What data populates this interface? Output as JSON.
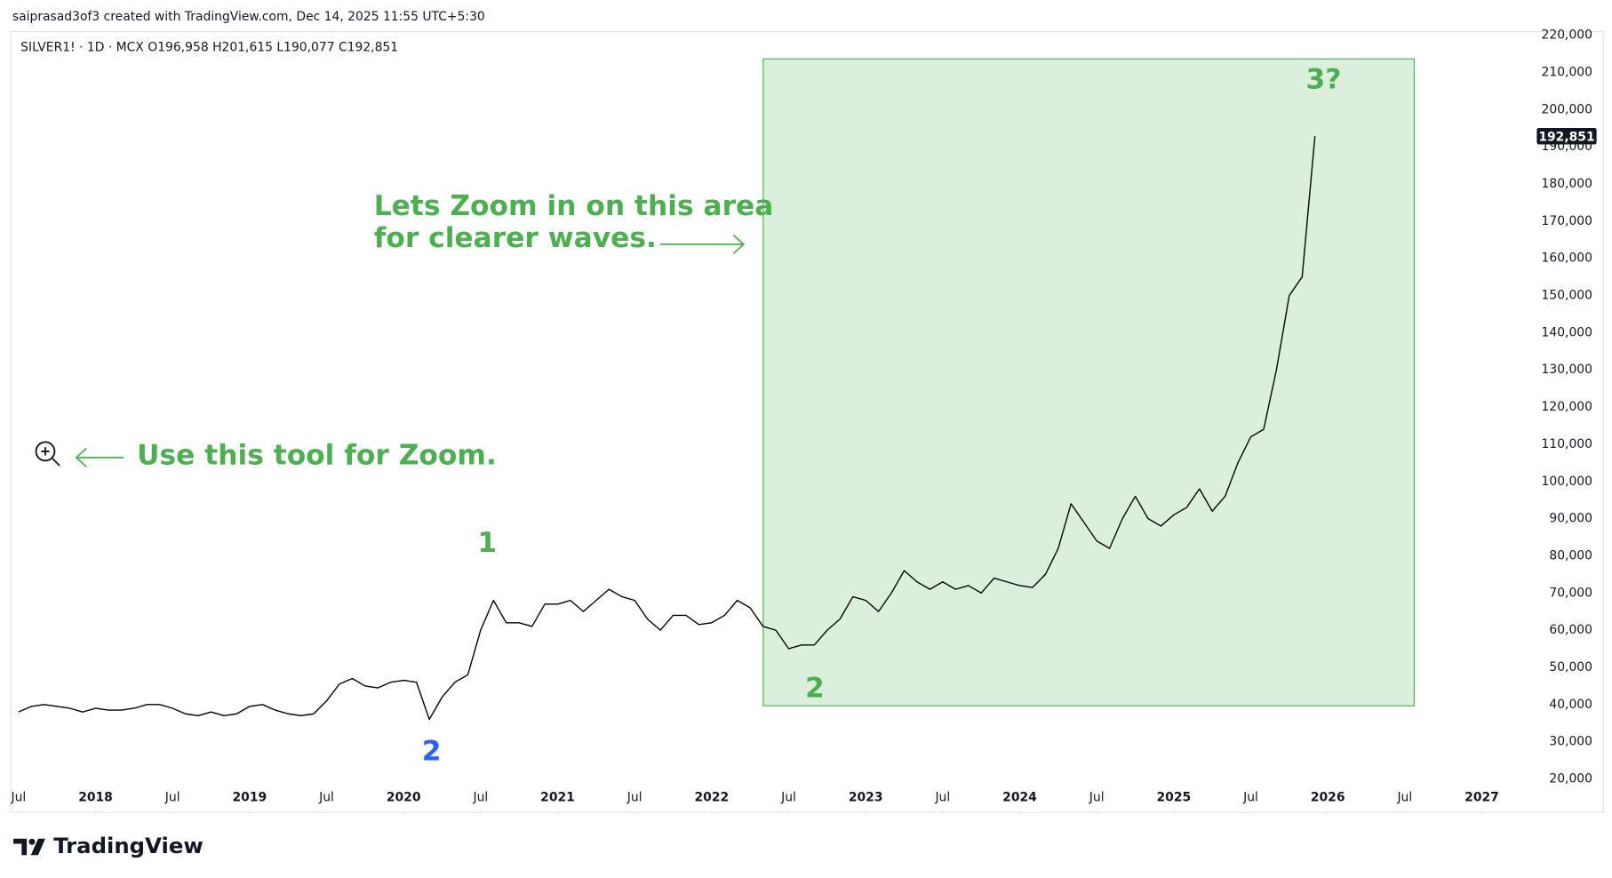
{
  "header": {
    "credit": "saiprasad3of3 created with TradingView.com, Dec 14, 2025 11:55 UTC+5:30",
    "brand": "TradingView"
  },
  "chart_data": {
    "type": "line",
    "title": "SILVER1! · 1D · MCX  O196,958  H201,615  L190,077  C192,851",
    "x": [
      "2017-07",
      "2017-08",
      "2017-09",
      "2017-10",
      "2017-11",
      "2017-12",
      "2018-01",
      "2018-02",
      "2018-03",
      "2018-04",
      "2018-05",
      "2018-06",
      "2018-07",
      "2018-08",
      "2018-09",
      "2018-10",
      "2018-11",
      "2018-12",
      "2019-01",
      "2019-02",
      "2019-03",
      "2019-04",
      "2019-05",
      "2019-06",
      "2019-07",
      "2019-08",
      "2019-09",
      "2019-10",
      "2019-11",
      "2019-12",
      "2020-01",
      "2020-02",
      "2020-03",
      "2020-04",
      "2020-05",
      "2020-06",
      "2020-07",
      "2020-08",
      "2020-09",
      "2020-10",
      "2020-11",
      "2020-12",
      "2021-01",
      "2021-02",
      "2021-03",
      "2021-04",
      "2021-05",
      "2021-06",
      "2021-07",
      "2021-08",
      "2021-09",
      "2021-10",
      "2021-11",
      "2021-12",
      "2022-01",
      "2022-02",
      "2022-03",
      "2022-04",
      "2022-05",
      "2022-06",
      "2022-07",
      "2022-08",
      "2022-09",
      "2022-10",
      "2022-11",
      "2022-12",
      "2023-01",
      "2023-02",
      "2023-03",
      "2023-04",
      "2023-05",
      "2023-06",
      "2023-07",
      "2023-08",
      "2023-09",
      "2023-10",
      "2023-11",
      "2023-12",
      "2024-01",
      "2024-02",
      "2024-03",
      "2024-04",
      "2024-05",
      "2024-06",
      "2024-07",
      "2024-08",
      "2024-09",
      "2024-10",
      "2024-11",
      "2024-12",
      "2025-01",
      "2025-02",
      "2025-03",
      "2025-04",
      "2025-05",
      "2025-06",
      "2025-07",
      "2025-08",
      "2025-09",
      "2025-10",
      "2025-11",
      "2025-12"
    ],
    "series": [
      {
        "name": "SILVER1!",
        "color": "#000000",
        "values": [
          38000,
          39500,
          40000,
          39500,
          39000,
          38000,
          39000,
          38500,
          38500,
          39000,
          40000,
          40000,
          39000,
          37500,
          37000,
          38000,
          37000,
          37500,
          39500,
          40000,
          38500,
          37500,
          37000,
          37500,
          41000,
          45500,
          47000,
          45000,
          44500,
          46000,
          46500,
          46000,
          36000,
          42000,
          46000,
          48000,
          60000,
          68000,
          62000,
          62000,
          61000,
          67000,
          67000,
          68000,
          65000,
          68000,
          71000,
          69000,
          68000,
          63000,
          60000,
          64000,
          64000,
          61500,
          62000,
          64000,
          68000,
          66000,
          61000,
          60000,
          55000,
          56000,
          56000,
          60000,
          63000,
          69000,
          68000,
          65000,
          70000,
          76000,
          73000,
          71000,
          73000,
          71000,
          72000,
          70000,
          74000,
          73000,
          72000,
          71500,
          75000,
          82000,
          94000,
          89000,
          84000,
          82000,
          90000,
          96000,
          90000,
          88000,
          91000,
          93000,
          98000,
          92000,
          96000,
          105000,
          112000,
          114000,
          130000,
          150000,
          155000,
          192851
        ]
      }
    ],
    "xlim": [
      "2017-07",
      "2027-04"
    ],
    "xticks": [
      {
        "value": "2017-07",
        "label": "Jul"
      },
      {
        "value": "2018-01",
        "label": "2018"
      },
      {
        "value": "2018-07",
        "label": "Jul"
      },
      {
        "value": "2019-01",
        "label": "2019"
      },
      {
        "value": "2019-07",
        "label": "Jul"
      },
      {
        "value": "2020-01",
        "label": "2020"
      },
      {
        "value": "2020-07",
        "label": "Jul"
      },
      {
        "value": "2021-01",
        "label": "2021"
      },
      {
        "value": "2021-07",
        "label": "Jul"
      },
      {
        "value": "2022-01",
        "label": "2022"
      },
      {
        "value": "2022-07",
        "label": "Jul"
      },
      {
        "value": "2023-01",
        "label": "2023"
      },
      {
        "value": "2023-07",
        "label": "Jul"
      },
      {
        "value": "2024-01",
        "label": "2024"
      },
      {
        "value": "2024-07",
        "label": "Jul"
      },
      {
        "value": "2025-01",
        "label": "2025"
      },
      {
        "value": "2025-07",
        "label": "Jul"
      },
      {
        "value": "2026-01",
        "label": "2026"
      },
      {
        "value": "2026-07",
        "label": "Jul"
      },
      {
        "value": "2027-01",
        "label": "2027"
      }
    ],
    "ylim": [
      20000,
      220000
    ],
    "yticks": [
      {
        "value": 20000,
        "label": "20,000"
      },
      {
        "value": 30000,
        "label": "30,000"
      },
      {
        "value": 40000,
        "label": "40,000"
      },
      {
        "value": 50000,
        "label": "50,000"
      },
      {
        "value": 60000,
        "label": "60,000"
      },
      {
        "value": 70000,
        "label": "70,000"
      },
      {
        "value": 80000,
        "label": "80,000"
      },
      {
        "value": 90000,
        "label": "90,000"
      },
      {
        "value": 100000,
        "label": "100,000"
      },
      {
        "value": 110000,
        "label": "110,000"
      },
      {
        "value": 120000,
        "label": "120,000"
      },
      {
        "value": 130000,
        "label": "130,000"
      },
      {
        "value": 140000,
        "label": "140,000"
      },
      {
        "value": 150000,
        "label": "150,000"
      },
      {
        "value": 160000,
        "label": "160,000"
      },
      {
        "value": 170000,
        "label": "170,000"
      },
      {
        "value": 180000,
        "label": "180,000"
      },
      {
        "value": 190000,
        "label": "190,000"
      },
      {
        "value": 200000,
        "label": "200,000"
      },
      {
        "value": 210000,
        "label": "210,000"
      },
      {
        "value": 220000,
        "label": "220,000"
      }
    ],
    "last_price": {
      "value": 192851,
      "label": "192,851"
    },
    "grid": false,
    "annotations": {
      "zoom_area_1": "Lets Zoom in on this area",
      "zoom_area_2": "for clearer waves.",
      "zoom_tool": "Use this tool for Zoom.",
      "wave_1": "1",
      "wave_2_first": "2",
      "wave_2_second": "2",
      "wave_3": "3?"
    }
  }
}
